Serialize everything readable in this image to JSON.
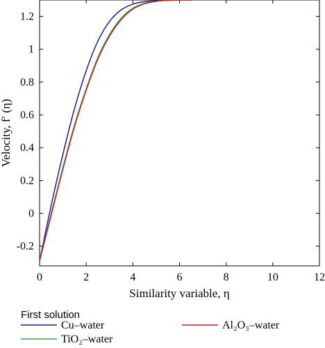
{
  "chart_data": {
    "type": "line",
    "xlabel": "Similarity variable, η",
    "ylabel": "Velocity, f′ (η)",
    "xlim": [
      0,
      12
    ],
    "ylim": [
      -0.32,
      1.3
    ],
    "xticks": [
      "0",
      "2",
      "4",
      "6",
      "8",
      "10",
      "12"
    ],
    "yticks": [
      "-0.2",
      "0",
      "0.2",
      "0.4",
      "0.6",
      "0.8",
      "1",
      "1.2"
    ],
    "grid": false,
    "legend_title": "First solution",
    "legend_placement": "bottom",
    "series": [
      {
        "name": "Cu–water",
        "color": "#1a1a9c",
        "x": [
          0,
          0.5,
          1,
          1.5,
          2,
          2.5,
          3,
          3.5,
          4,
          4.5,
          5,
          5.5,
          6,
          6.5
        ],
        "y": [
          -0.29,
          0.05,
          0.36,
          0.64,
          0.87,
          1.05,
          1.17,
          1.24,
          1.275,
          1.29,
          1.295,
          1.298,
          1.3,
          1.3
        ]
      },
      {
        "name": "TiO₂–water",
        "color": "#2eaa4a",
        "x": [
          0,
          0.5,
          1,
          1.5,
          2,
          2.5,
          3,
          3.5,
          4,
          4.5,
          5,
          5.5,
          6,
          6.5
        ],
        "y": [
          -0.29,
          0.0,
          0.28,
          0.54,
          0.76,
          0.95,
          1.09,
          1.19,
          1.25,
          1.28,
          1.293,
          1.298,
          1.3,
          1.3
        ]
      },
      {
        "name": "Al₂O₃–water",
        "color": "#c41e1e",
        "x": [
          0,
          0.5,
          1,
          1.5,
          2,
          2.5,
          3,
          3.5,
          4,
          4.5,
          5,
          5.5,
          6,
          6.5
        ],
        "y": [
          -0.29,
          -0.01,
          0.27,
          0.53,
          0.75,
          0.94,
          1.08,
          1.18,
          1.245,
          1.277,
          1.292,
          1.298,
          1.3,
          1.3
        ]
      }
    ]
  }
}
